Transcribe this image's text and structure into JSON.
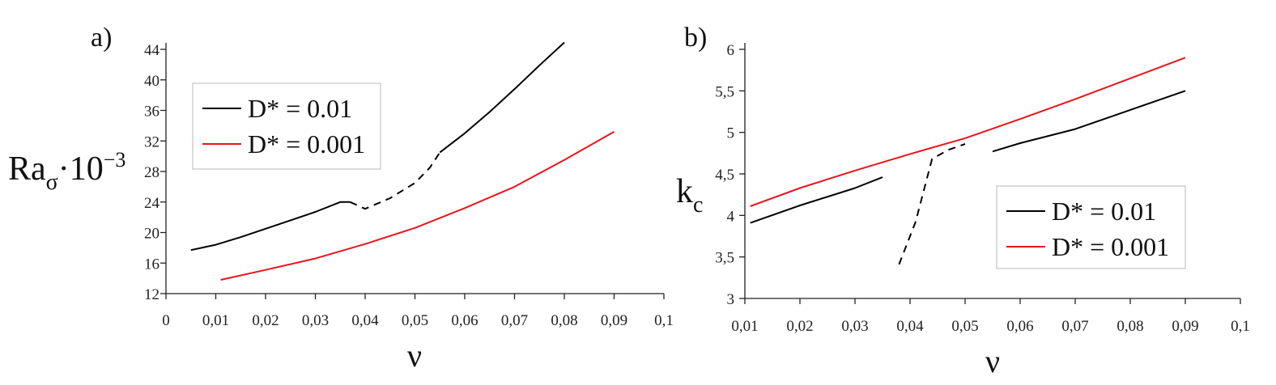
{
  "chart_data": [
    {
      "type": "line",
      "panel_label": "a)",
      "xlabel": "ν",
      "ylabel": "Ra_σ·10^−3",
      "xlim": [
        0,
        0.1
      ],
      "ylim": [
        12,
        44
      ],
      "x_ticks": [
        "0",
        "0,01",
        "0,02",
        "0,03",
        "0,04",
        "0,05",
        "0,06",
        "0,07",
        "0,08",
        "0,09",
        "0,1"
      ],
      "y_ticks": [
        "12",
        "16",
        "20",
        "24",
        "28",
        "32",
        "36",
        "40",
        "44"
      ],
      "grid": false,
      "legend_position": "upper-left",
      "series": [
        {
          "name": "D* = 0.01",
          "color": "#000000",
          "segments": [
            {
              "style": "solid",
              "points": [
                [
                  0.005,
                  17.7
                ],
                [
                  0.01,
                  18.4
                ],
                [
                  0.015,
                  19.4
                ],
                [
                  0.02,
                  20.5
                ],
                [
                  0.025,
                  21.6
                ],
                [
                  0.03,
                  22.7
                ],
                [
                  0.035,
                  24.0
                ],
                [
                  0.037,
                  24.0
                ]
              ]
            },
            {
              "style": "dashed",
              "points": [
                [
                  0.037,
                  24.0
                ],
                [
                  0.04,
                  23.1
                ],
                [
                  0.045,
                  24.5
                ],
                [
                  0.05,
                  26.5
                ],
                [
                  0.053,
                  28.5
                ],
                [
                  0.055,
                  30.5
                ]
              ]
            },
            {
              "style": "solid",
              "points": [
                [
                  0.055,
                  30.5
                ],
                [
                  0.06,
                  33.0
                ],
                [
                  0.065,
                  35.8
                ],
                [
                  0.07,
                  38.8
                ],
                [
                  0.075,
                  41.9
                ],
                [
                  0.08,
                  44.9
                ]
              ]
            }
          ]
        },
        {
          "name": "D* = 0.001",
          "color": "#e8141c",
          "segments": [
            {
              "style": "solid",
              "points": [
                [
                  0.011,
                  13.8
                ],
                [
                  0.02,
                  15.1
                ],
                [
                  0.03,
                  16.6
                ],
                [
                  0.04,
                  18.5
                ],
                [
                  0.05,
                  20.6
                ],
                [
                  0.06,
                  23.2
                ],
                [
                  0.07,
                  26.0
                ],
                [
                  0.08,
                  29.5
                ],
                [
                  0.09,
                  33.2
                ]
              ]
            }
          ]
        }
      ]
    },
    {
      "type": "line",
      "panel_label": "b)",
      "xlabel": "ν",
      "ylabel": "k_c",
      "xlim": [
        0.01,
        0.1
      ],
      "ylim": [
        3,
        6
      ],
      "x_ticks": [
        "0,01",
        "0,02",
        "0,03",
        "0,04",
        "0,05",
        "0,06",
        "0,07",
        "0,08",
        "0,09",
        "0,1"
      ],
      "y_ticks": [
        "3",
        "3,5",
        "4",
        "4,5",
        "5",
        "5,5",
        "6"
      ],
      "grid": false,
      "legend_position": "lower-right",
      "series": [
        {
          "name": "D* = 0.01",
          "color": "#000000",
          "segments": [
            {
              "style": "solid",
              "points": [
                [
                  0.011,
                  3.91
                ],
                [
                  0.02,
                  4.12
                ],
                [
                  0.03,
                  4.33
                ],
                [
                  0.035,
                  4.46
                ]
              ]
            },
            {
              "style": "dashed",
              "points": [
                [
                  0.038,
                  3.41
                ],
                [
                  0.041,
                  3.92
                ],
                [
                  0.044,
                  4.68
                ],
                [
                  0.047,
                  4.79
                ],
                [
                  0.05,
                  4.86
                ]
              ]
            },
            {
              "style": "solid",
              "points": [
                [
                  0.055,
                  4.77
                ],
                [
                  0.06,
                  4.87
                ],
                [
                  0.07,
                  5.04
                ],
                [
                  0.08,
                  5.27
                ],
                [
                  0.09,
                  5.5
                ]
              ]
            }
          ]
        },
        {
          "name": "D* = 0.001",
          "color": "#e8141c",
          "segments": [
            {
              "style": "solid",
              "points": [
                [
                  0.011,
                  4.11
                ],
                [
                  0.02,
                  4.33
                ],
                [
                  0.03,
                  4.54
                ],
                [
                  0.04,
                  4.74
                ],
                [
                  0.05,
                  4.93
                ],
                [
                  0.06,
                  5.16
                ],
                [
                  0.07,
                  5.4
                ],
                [
                  0.08,
                  5.65
                ],
                [
                  0.09,
                  5.9
                ]
              ]
            }
          ]
        }
      ]
    }
  ]
}
